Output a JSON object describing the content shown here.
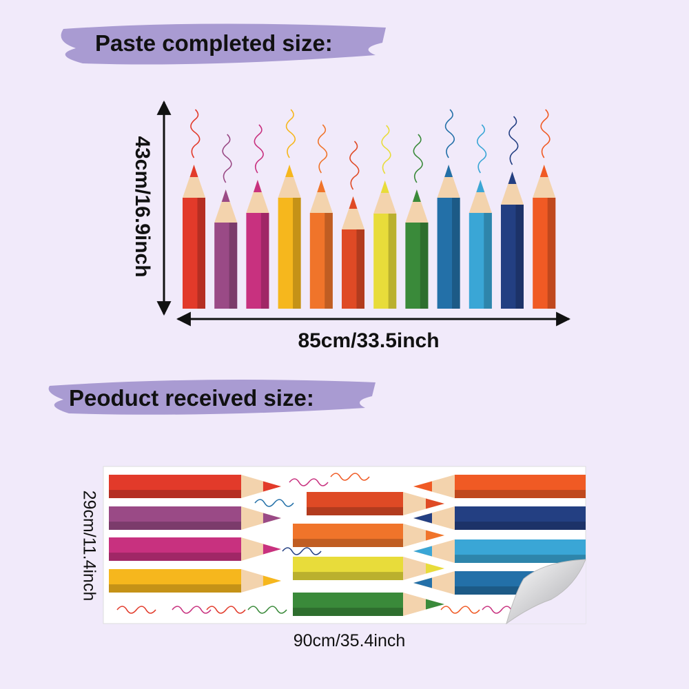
{
  "sections": [
    {
      "title": "Paste completed size:",
      "height": "43cm/16.9inch",
      "width": "85cm/33.5inch"
    },
    {
      "title": "Peoduct received size:",
      "height": "29cm/11.4inch",
      "width": "90cm/35.4inch"
    }
  ]
}
